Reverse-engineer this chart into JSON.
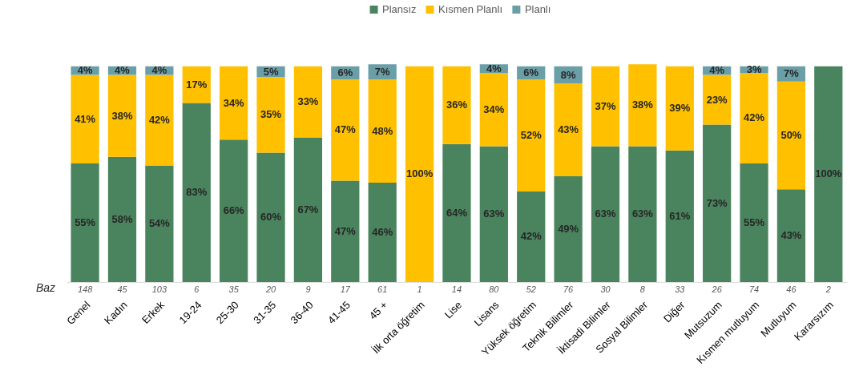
{
  "chart_data": {
    "type": "bar",
    "stacked": true,
    "legend": "top",
    "data_labels": false,
    "categories": [
      "Genel",
      "Kadın",
      "Erkek",
      "19-24",
      "25-30",
      "31-35",
      "36-40",
      "41-45",
      "45 +",
      "İlk orta öğretim",
      "Lise",
      "Lisans",
      "Yüksek öğretim",
      "Teknik Bilimler",
      "İktisadi Bilimler",
      "Sosyal Bilimler",
      "Diğer",
      "Mutsuzum",
      "Kısmen mutluyum",
      "Mutluyum",
      "Kararsızım"
    ],
    "ylim": [
      0,
      101
    ],
    "series": [
      {
        "name": "Plansız",
        "color": "#4a845e",
        "values": [
          55,
          58,
          54,
          83,
          66,
          60,
          67,
          47,
          46,
          null,
          64,
          63,
          42,
          49,
          63,
          63,
          61,
          73,
          55,
          43,
          100
        ],
        "value_labels": [
          "55%",
          "58%",
          "54%",
          "83%",
          "66%",
          "60%",
          "67%",
          "47%",
          "46%",
          null,
          "64%",
          "63%",
          "42%",
          "49%",
          "63%",
          "63%",
          "61%",
          "73%",
          "55%",
          "43%",
          "100%"
        ]
      },
      {
        "name": "Kısmen Planlı",
        "color": "#ffc000",
        "values": [
          41,
          38,
          42,
          17,
          34,
          35,
          33,
          47,
          48,
          100,
          36,
          34,
          52,
          43,
          37,
          38,
          39,
          23,
          42,
          50,
          null
        ],
        "value_labels": [
          "41%",
          "38%",
          "42%",
          "17%",
          "34%",
          "35%",
          "33%",
          "47%",
          "48%",
          "100%",
          "36%",
          "34%",
          "52%",
          "43%",
          "37%",
          "38%",
          "39%",
          "23%",
          "42%",
          "50%",
          null
        ]
      },
      {
        "name": "Planlı",
        "color": "#6b9fa8",
        "values": [
          4,
          4,
          4,
          null,
          null,
          5,
          null,
          6,
          7,
          null,
          null,
          4,
          6,
          8,
          null,
          null,
          null,
          4,
          3,
          7,
          null
        ],
        "value_labels": [
          "4%",
          "4%",
          "4%",
          null,
          null,
          "5%",
          null,
          "6%",
          "7%",
          null,
          null,
          "4%",
          "6%",
          "8%",
          null,
          null,
          null,
          "4%",
          "3%",
          "7%",
          null
        ]
      }
    ],
    "annotations": [
      "Baz",
      "148",
      "45",
      "103",
      "6",
      "35",
      "20",
      "9",
      "17",
      "61",
      "1",
      "14",
      "80",
      "52",
      "76",
      "30",
      "8",
      "33",
      "26",
      "74",
      "46",
      "2"
    ]
  }
}
